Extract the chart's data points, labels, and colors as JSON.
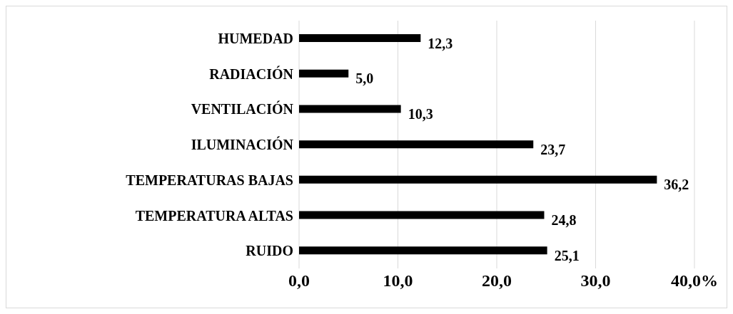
{
  "chart_data": {
    "type": "bar",
    "orientation": "horizontal",
    "categories": [
      "HUMEDAD",
      "RADIACIÓN",
      "VENTILACIÓN",
      "ILUMINACIÓN",
      "TEMPERATURAS BAJAS",
      "TEMPERATURA ALTAS",
      "RUIDO"
    ],
    "values": [
      12.3,
      5.0,
      10.3,
      23.7,
      36.2,
      24.8,
      25.1
    ],
    "value_labels": [
      "12,3",
      "5,0",
      "10,3",
      "23,7",
      "36,2",
      "24,8",
      "25,1"
    ],
    "color": "#000000",
    "xlim": [
      0,
      40
    ],
    "xticks": [
      {
        "value": 0,
        "label": "0,0"
      },
      {
        "value": 10,
        "label": "10,0"
      },
      {
        "value": 20,
        "label": "20,0"
      },
      {
        "value": 30,
        "label": "30,0"
      },
      {
        "value": 40,
        "label": "40,0%"
      }
    ],
    "grid": "x"
  }
}
